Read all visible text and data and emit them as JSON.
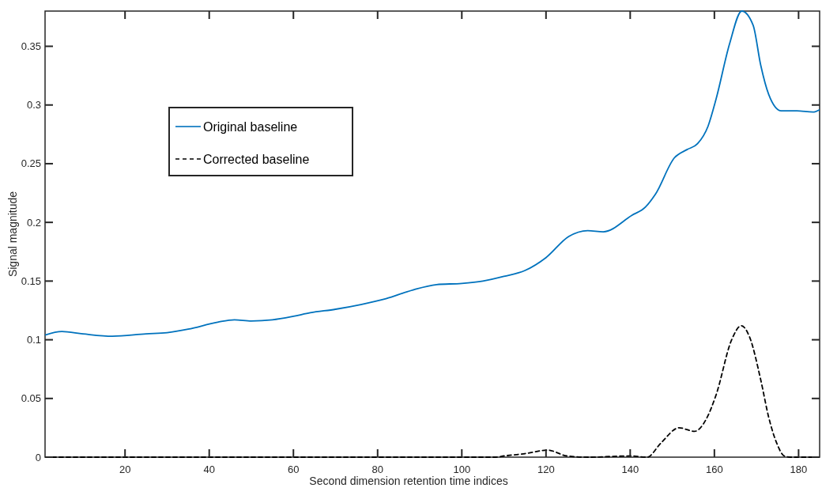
{
  "chart_data": {
    "type": "line",
    "xlabel": "Second dimension retention time indices",
    "ylabel": "Signal magnitude",
    "xlim": [
      1,
      185
    ],
    "ylim": [
      0,
      0.38
    ],
    "xticks": [
      20,
      40,
      60,
      80,
      100,
      120,
      140,
      160,
      180
    ],
    "yticks": [
      0,
      0.05,
      0.1,
      0.15,
      0.2,
      0.25,
      0.3,
      0.35
    ],
    "legend": "top left",
    "series": [
      {
        "name": "Original baseline",
        "color": "#0072bd",
        "line_style": "solid",
        "x": [
          1,
          5,
          10,
          17,
          25,
          30,
          35,
          42,
          46,
          50,
          55,
          60,
          64,
          70,
          76,
          82,
          88,
          94,
          100,
          105,
          110,
          115,
          120,
          125.4,
          129.9,
          133.6,
          140.4,
          143.6,
          146,
          150.5,
          153.5,
          156,
          158.5,
          160.4,
          163.6,
          166.5,
          169.2,
          171,
          172.9,
          175.9,
          179.6,
          183.4,
          185
        ],
        "values": [
          0.104,
          0.107,
          0.105,
          0.103,
          0.105,
          0.106,
          0.109,
          0.115,
          0.117,
          0.116,
          0.117,
          0.12,
          0.123,
          0.126,
          0.13,
          0.135,
          0.142,
          0.147,
          0.148,
          0.15,
          0.154,
          0.159,
          0.17,
          0.188,
          0.193,
          0.192,
          0.206,
          0.213,
          0.224,
          0.255,
          0.262,
          0.267,
          0.282,
          0.305,
          0.352,
          0.38,
          0.368,
          0.334,
          0.309,
          0.295,
          0.295,
          0.294,
          0.296
        ]
      },
      {
        "name": "Corrected baseline",
        "color": "#000000",
        "line_style": "dashed",
        "x": [
          1,
          20,
          60,
          100,
          108,
          110,
          115,
          120.4,
          125,
          130,
          140,
          144,
          147.3,
          151.6,
          155.3,
          158,
          160.4,
          164.1,
          166.4,
          168.4,
          171,
          172.9,
          174.8,
          176.6,
          178,
          185
        ],
        "values": [
          0,
          0,
          0,
          0,
          0,
          0.001,
          0.003,
          0.006,
          0.001,
          0,
          0.001,
          0,
          0.012,
          0.025,
          0.022,
          0.032,
          0.053,
          0.1,
          0.112,
          0.102,
          0.066,
          0.034,
          0.012,
          0.001,
          0,
          0
        ]
      }
    ]
  }
}
